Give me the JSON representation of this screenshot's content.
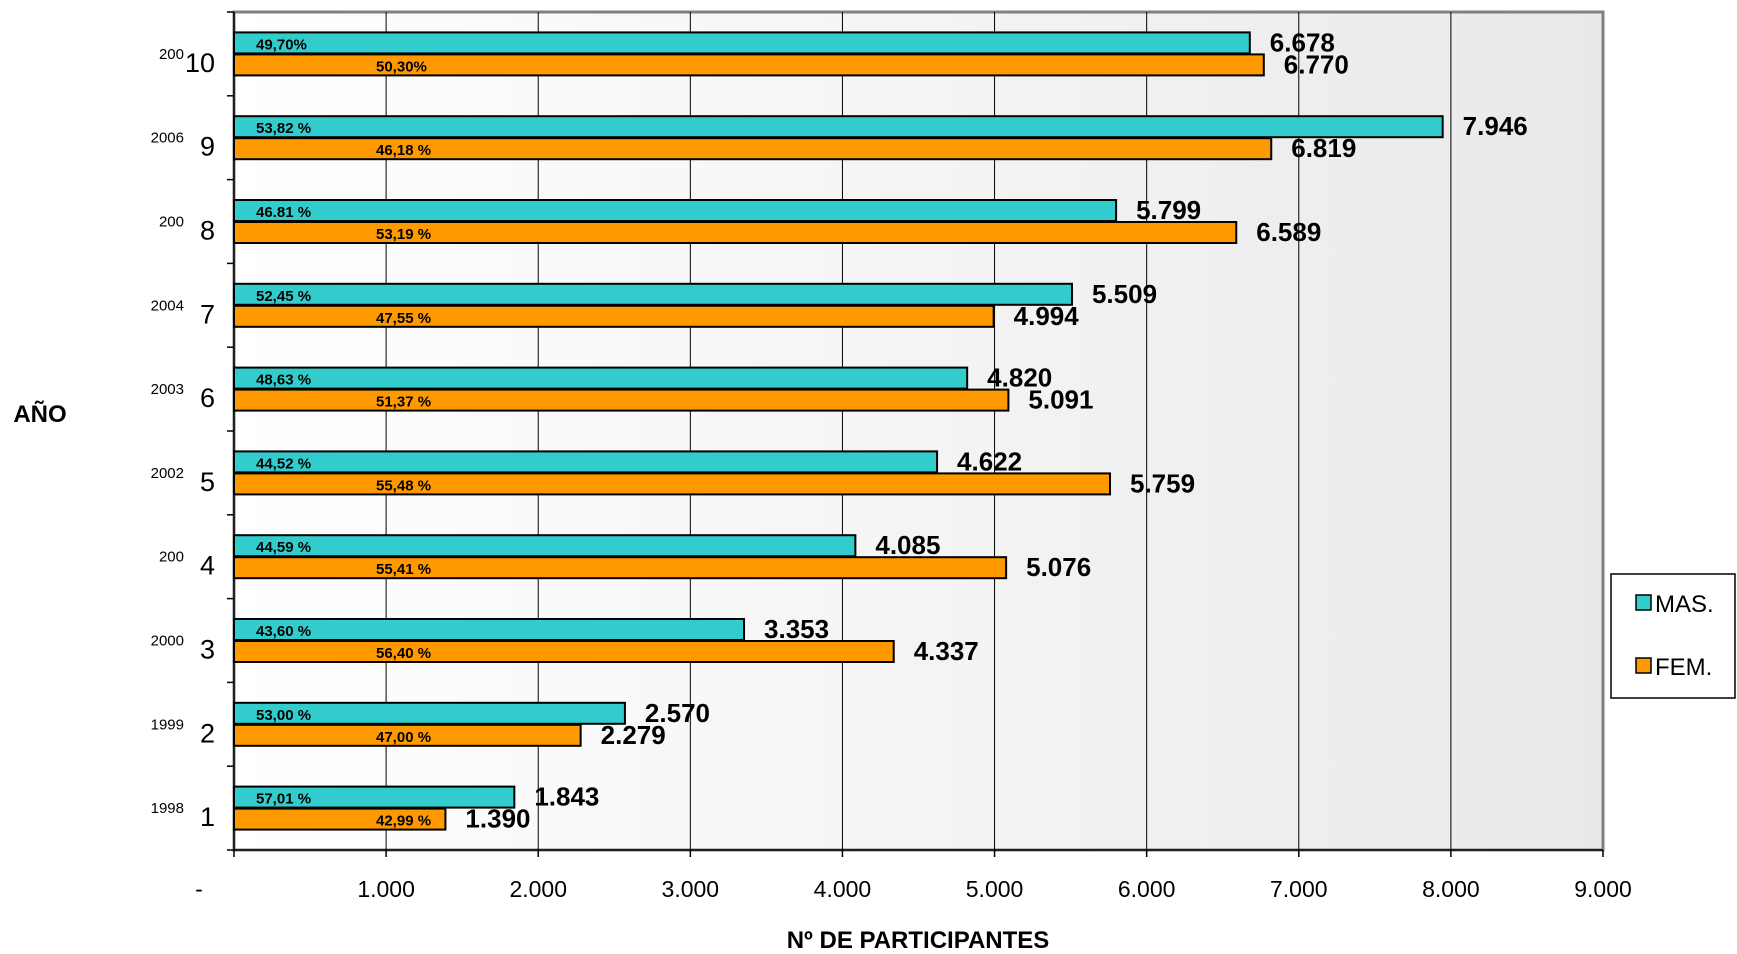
{
  "chart_data": {
    "type": "bar",
    "orientation": "horizontal",
    "xlabel": "Nº DE PARTICIPANTES",
    "ylabel": "AÑO",
    "xlim": [
      0,
      9000
    ],
    "x_ticks": [
      "-",
      "1.000",
      "2.000",
      "3.000",
      "4.000",
      "5.000",
      "6.000",
      "7.000",
      "8.000",
      "9.000"
    ],
    "grid": "vertical",
    "legend_position": "right",
    "categories": [
      {
        "num": "1",
        "year": "1998"
      },
      {
        "num": "2",
        "year": "1999"
      },
      {
        "num": "3",
        "year": "2000"
      },
      {
        "num": "4",
        "year": "200"
      },
      {
        "num": "5",
        "year": "2002"
      },
      {
        "num": "6",
        "year": "2003"
      },
      {
        "num": "7",
        "year": "2004"
      },
      {
        "num": "8",
        "year": "200"
      },
      {
        "num": "9",
        "year": "2006"
      },
      {
        "num": "10",
        "year": "200"
      }
    ],
    "series": [
      {
        "name": "MAS.",
        "color": "#33cccc",
        "values": [
          1843,
          2570,
          3353,
          4085,
          4622,
          4820,
          5509,
          5799,
          7946,
          6678
        ],
        "value_labels": [
          "1.843",
          "2.570",
          "3.353",
          "4.085",
          "4.622",
          "4.820",
          "5.509",
          "5.799",
          "7.946",
          "6.678"
        ],
        "percent_labels": [
          "57,01 %",
          "53,00 %",
          "43,60 %",
          "44,59 %",
          "44,52 %",
          "48,63 %",
          "52,45 %",
          "46.81 %",
          "53,82 %",
          "49,70%"
        ]
      },
      {
        "name": "FEM.",
        "color": "#ff9900",
        "values": [
          1390,
          2279,
          4337,
          5076,
          5759,
          5091,
          4994,
          6589,
          6819,
          6770
        ],
        "value_labels": [
          "1.390",
          "2.279",
          "4.337",
          "5.076",
          "5.759",
          "5.091",
          "4.994",
          "6.589",
          "6.819",
          "6.770"
        ],
        "percent_labels": [
          "42,99 %",
          "47,00 %",
          "56,40 %",
          "55,41 %",
          "55,48 %",
          "51,37 %",
          "47,55 %",
          "53,19 %",
          "46,18 %",
          "50,30%"
        ]
      }
    ]
  }
}
